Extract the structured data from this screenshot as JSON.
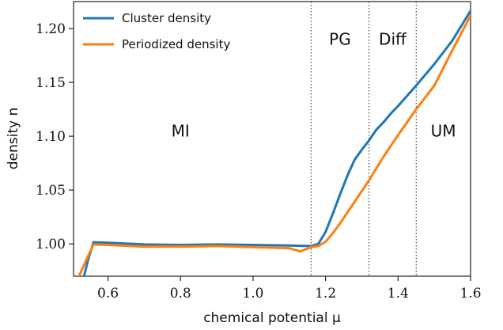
{
  "chart_data": {
    "type": "line",
    "xlabel": "chemical potential μ",
    "ylabel": "density n",
    "xlim": [
      0.505,
      1.6
    ],
    "ylim": [
      0.97,
      1.225
    ],
    "x_ticks": [
      "0.6",
      "0.8",
      "1.0",
      "1.2",
      "1.4",
      "1.6"
    ],
    "y_ticks": [
      "1.00",
      "1.05",
      "1.10",
      "1.15",
      "1.20"
    ],
    "grid": false,
    "legend_position": "top-left",
    "series": [
      {
        "name": "Cluster density",
        "color": "#1f77b4",
        "x": [
          0.505,
          0.53,
          0.545,
          0.56,
          0.6,
          0.7,
          0.8,
          0.9,
          1.0,
          1.1,
          1.16,
          1.18,
          1.2,
          1.22,
          1.24,
          1.26,
          1.28,
          1.3,
          1.32,
          1.34,
          1.36,
          1.38,
          1.4,
          1.45,
          1.5,
          1.55,
          1.6
        ],
        "y": [
          0.965,
          0.965,
          0.985,
          1.0015,
          1.001,
          0.9995,
          0.999,
          0.9995,
          0.999,
          0.9985,
          0.998,
          1.0,
          1.011,
          1.028,
          1.046,
          1.063,
          1.078,
          1.0875,
          1.096,
          1.106,
          1.113,
          1.121,
          1.128,
          1.147,
          1.167,
          1.189,
          1.2165
        ]
      },
      {
        "name": "Periodized density",
        "color": "#ff7f0e",
        "x": [
          0.505,
          0.52,
          0.54,
          0.56,
          0.6,
          0.7,
          0.8,
          0.9,
          1.0,
          1.1,
          1.13,
          1.16,
          1.18,
          1.2,
          1.22,
          1.24,
          1.26,
          1.28,
          1.3,
          1.32,
          1.34,
          1.36,
          1.38,
          1.4,
          1.45,
          1.5,
          1.55,
          1.6
        ],
        "y": [
          0.965,
          0.97,
          0.985,
          0.9995,
          0.999,
          0.9975,
          0.9975,
          0.998,
          0.997,
          0.996,
          0.993,
          0.997,
          0.998,
          1.002,
          1.01,
          1.019,
          1.029,
          1.039,
          1.049,
          1.059,
          1.07,
          1.081,
          1.091,
          1.101,
          1.125,
          1.147,
          1.18,
          1.212
        ]
      }
    ],
    "region_boundaries": [
      1.16,
      1.32,
      1.45
    ],
    "regions": [
      {
        "label": "MI",
        "x": 0.8,
        "y": 1.105
      },
      {
        "label": "PG",
        "x": 1.24,
        "y": 1.19
      },
      {
        "label": "Diff",
        "x": 1.385,
        "y": 1.19
      },
      {
        "label": "UM",
        "x": 1.525,
        "y": 1.105
      }
    ]
  }
}
